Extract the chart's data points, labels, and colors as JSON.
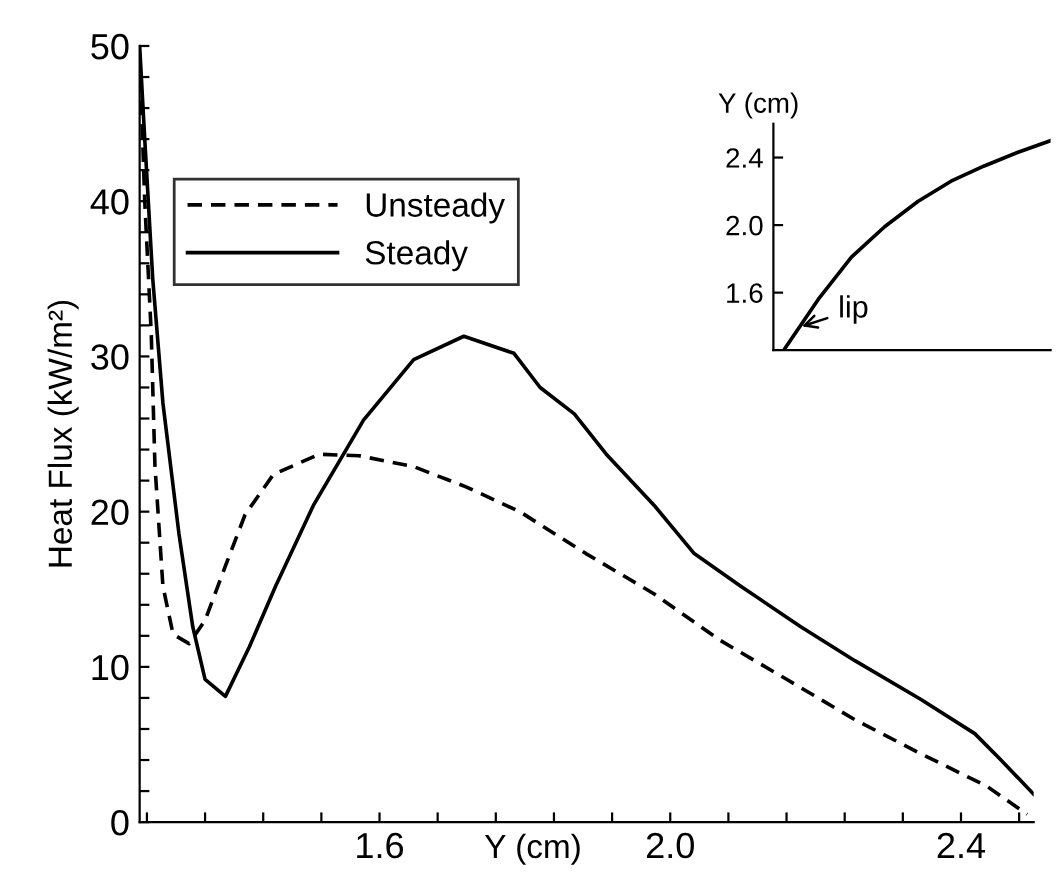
{
  "chart_data": [
    {
      "type": "line",
      "xlabel": "Y (cm)",
      "ylabel": "Heat Flux (kW/m²)",
      "xlim": [
        1.27,
        2.5
      ],
      "ylim": [
        0,
        50
      ],
      "xticks": [
        {
          "value": 1.28,
          "label": null
        },
        {
          "value": 1.36,
          "label": null
        },
        {
          "value": 1.44,
          "label": null
        },
        {
          "value": 1.52,
          "label": null
        },
        1.6,
        {
          "value": 1.68,
          "label": null
        },
        {
          "value": 1.76,
          "label": null
        },
        {
          "value": 1.84,
          "label": null
        },
        {
          "value": 1.92,
          "label": null
        },
        {
          "value": 2.0,
          "label": "2.0"
        },
        {
          "value": 2.08,
          "label": null
        },
        {
          "value": 2.16,
          "label": null
        },
        {
          "value": 2.24,
          "label": null
        },
        {
          "value": 2.32,
          "label": null
        },
        2.4,
        {
          "value": 2.48,
          "label": null
        }
      ],
      "yticks": [
        0,
        {
          "value": 2,
          "label": null
        },
        {
          "value": 4,
          "label": null
        },
        {
          "value": 6,
          "label": null
        },
        {
          "value": 8,
          "label": null
        },
        10,
        {
          "value": 12,
          "label": null
        },
        {
          "value": 14,
          "label": null
        },
        {
          "value": 16,
          "label": null
        },
        {
          "value": 18,
          "label": null
        },
        20,
        {
          "value": 22,
          "label": null
        },
        {
          "value": 24,
          "label": null
        },
        {
          "value": 26,
          "label": null
        },
        {
          "value": 28,
          "label": null
        },
        30,
        {
          "value": 32,
          "label": null
        },
        {
          "value": 34,
          "label": null
        },
        {
          "value": 36,
          "label": null
        },
        {
          "value": 38,
          "label": null
        },
        40,
        {
          "value": 42,
          "label": null
        },
        {
          "value": 44,
          "label": null
        },
        {
          "value": 46,
          "label": null
        },
        {
          "value": 48,
          "label": null
        },
        50
      ],
      "grid": false,
      "legend": "top left",
      "marker": "none",
      "series": [
        {
          "name": "Unsteady",
          "color": "#000000",
          "line_style": "dashed",
          "x": [
            1.27,
            1.277,
            1.286,
            1.291,
            1.302,
            1.316,
            1.338,
            1.36,
            1.388,
            1.415,
            1.454,
            1.517,
            1.572,
            1.647,
            1.719,
            1.793,
            1.884,
            1.978,
            2.069,
            2.16,
            2.254,
            2.345,
            2.436,
            2.491
          ],
          "values": [
            49.5,
            40,
            31.4,
            23,
            15.2,
            12.1,
            11.5,
            13,
            16.5,
            19.8,
            22.4,
            23.7,
            23.6,
            22.9,
            21.6,
            20,
            17.3,
            14.7,
            11.7,
            9.2,
            6.6,
            4.4,
            2.3,
            0.5
          ]
        },
        {
          "name": "Steady",
          "color": "#000000",
          "line_style": "solid",
          "x": [
            1.27,
            1.277,
            1.288,
            1.302,
            1.324,
            1.343,
            1.36,
            1.388,
            1.421,
            1.457,
            1.509,
            1.578,
            1.647,
            1.716,
            1.785,
            1.821,
            1.868,
            1.912,
            1.978,
            2.033,
            2.097,
            2.179,
            2.254,
            2.345,
            2.419,
            2.455,
            2.5
          ],
          "values": [
            50,
            44,
            35,
            27,
            18.6,
            12.6,
            9.2,
            8.1,
            11.3,
            15.2,
            20.4,
            25.9,
            29.8,
            31.3,
            30.2,
            28,
            26.3,
            23.7,
            20.4,
            17.3,
            15.2,
            12.6,
            10.4,
            7.9,
            5.7,
            4,
            1.8
          ]
        }
      ]
    },
    {
      "type": "line",
      "ylabel": "Y (cm)",
      "ylim": [
        1.26,
        2.6
      ],
      "yticks": [
        1.6,
        {
          "value": 2.0,
          "label": "2.0"
        },
        2.4
      ],
      "tick_labels": "y",
      "grid": false,
      "marker": "none",
      "annotations": [
        "lip"
      ],
      "categories": [
        null,
        null,
        null,
        null,
        null,
        null,
        null,
        null,
        null
      ],
      "series": [
        {
          "color": "#000000",
          "line_style": "solid",
          "values": [
            1.27,
            1.56,
            1.81,
            1.99,
            2.14,
            2.26,
            2.35,
            2.43,
            2.5
          ]
        }
      ]
    }
  ]
}
